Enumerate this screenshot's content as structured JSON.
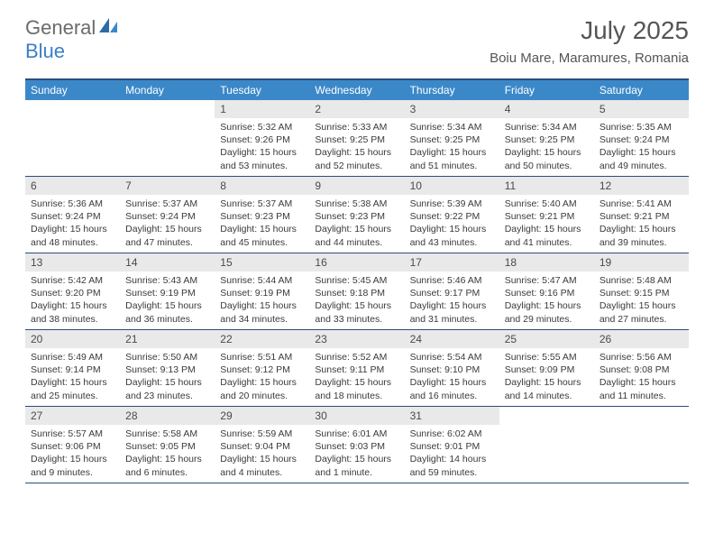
{
  "logo": {
    "part1": "General",
    "part2": "Blue"
  },
  "title": "July 2025",
  "location": "Boiu Mare, Maramures, Romania",
  "colors": {
    "header_bg": "#3b88c9",
    "header_border": "#2a4d7a",
    "daynum_bg": "#e9e9e9",
    "text_dark": "#3a3a3a",
    "title_gray": "#555555",
    "logo_gray": "#6b6b6b",
    "logo_blue": "#3b7fc4"
  },
  "day_headers": [
    "Sunday",
    "Monday",
    "Tuesday",
    "Wednesday",
    "Thursday",
    "Friday",
    "Saturday"
  ],
  "weeks": [
    [
      {
        "empty": true
      },
      {
        "empty": true
      },
      {
        "num": "1",
        "sunrise": "Sunrise: 5:32 AM",
        "sunset": "Sunset: 9:26 PM",
        "daylight": "Daylight: 15 hours and 53 minutes."
      },
      {
        "num": "2",
        "sunrise": "Sunrise: 5:33 AM",
        "sunset": "Sunset: 9:25 PM",
        "daylight": "Daylight: 15 hours and 52 minutes."
      },
      {
        "num": "3",
        "sunrise": "Sunrise: 5:34 AM",
        "sunset": "Sunset: 9:25 PM",
        "daylight": "Daylight: 15 hours and 51 minutes."
      },
      {
        "num": "4",
        "sunrise": "Sunrise: 5:34 AM",
        "sunset": "Sunset: 9:25 PM",
        "daylight": "Daylight: 15 hours and 50 minutes."
      },
      {
        "num": "5",
        "sunrise": "Sunrise: 5:35 AM",
        "sunset": "Sunset: 9:24 PM",
        "daylight": "Daylight: 15 hours and 49 minutes."
      }
    ],
    [
      {
        "num": "6",
        "sunrise": "Sunrise: 5:36 AM",
        "sunset": "Sunset: 9:24 PM",
        "daylight": "Daylight: 15 hours and 48 minutes."
      },
      {
        "num": "7",
        "sunrise": "Sunrise: 5:37 AM",
        "sunset": "Sunset: 9:24 PM",
        "daylight": "Daylight: 15 hours and 47 minutes."
      },
      {
        "num": "8",
        "sunrise": "Sunrise: 5:37 AM",
        "sunset": "Sunset: 9:23 PM",
        "daylight": "Daylight: 15 hours and 45 minutes."
      },
      {
        "num": "9",
        "sunrise": "Sunrise: 5:38 AM",
        "sunset": "Sunset: 9:23 PM",
        "daylight": "Daylight: 15 hours and 44 minutes."
      },
      {
        "num": "10",
        "sunrise": "Sunrise: 5:39 AM",
        "sunset": "Sunset: 9:22 PM",
        "daylight": "Daylight: 15 hours and 43 minutes."
      },
      {
        "num": "11",
        "sunrise": "Sunrise: 5:40 AM",
        "sunset": "Sunset: 9:21 PM",
        "daylight": "Daylight: 15 hours and 41 minutes."
      },
      {
        "num": "12",
        "sunrise": "Sunrise: 5:41 AM",
        "sunset": "Sunset: 9:21 PM",
        "daylight": "Daylight: 15 hours and 39 minutes."
      }
    ],
    [
      {
        "num": "13",
        "sunrise": "Sunrise: 5:42 AM",
        "sunset": "Sunset: 9:20 PM",
        "daylight": "Daylight: 15 hours and 38 minutes."
      },
      {
        "num": "14",
        "sunrise": "Sunrise: 5:43 AM",
        "sunset": "Sunset: 9:19 PM",
        "daylight": "Daylight: 15 hours and 36 minutes."
      },
      {
        "num": "15",
        "sunrise": "Sunrise: 5:44 AM",
        "sunset": "Sunset: 9:19 PM",
        "daylight": "Daylight: 15 hours and 34 minutes."
      },
      {
        "num": "16",
        "sunrise": "Sunrise: 5:45 AM",
        "sunset": "Sunset: 9:18 PM",
        "daylight": "Daylight: 15 hours and 33 minutes."
      },
      {
        "num": "17",
        "sunrise": "Sunrise: 5:46 AM",
        "sunset": "Sunset: 9:17 PM",
        "daylight": "Daylight: 15 hours and 31 minutes."
      },
      {
        "num": "18",
        "sunrise": "Sunrise: 5:47 AM",
        "sunset": "Sunset: 9:16 PM",
        "daylight": "Daylight: 15 hours and 29 minutes."
      },
      {
        "num": "19",
        "sunrise": "Sunrise: 5:48 AM",
        "sunset": "Sunset: 9:15 PM",
        "daylight": "Daylight: 15 hours and 27 minutes."
      }
    ],
    [
      {
        "num": "20",
        "sunrise": "Sunrise: 5:49 AM",
        "sunset": "Sunset: 9:14 PM",
        "daylight": "Daylight: 15 hours and 25 minutes."
      },
      {
        "num": "21",
        "sunrise": "Sunrise: 5:50 AM",
        "sunset": "Sunset: 9:13 PM",
        "daylight": "Daylight: 15 hours and 23 minutes."
      },
      {
        "num": "22",
        "sunrise": "Sunrise: 5:51 AM",
        "sunset": "Sunset: 9:12 PM",
        "daylight": "Daylight: 15 hours and 20 minutes."
      },
      {
        "num": "23",
        "sunrise": "Sunrise: 5:52 AM",
        "sunset": "Sunset: 9:11 PM",
        "daylight": "Daylight: 15 hours and 18 minutes."
      },
      {
        "num": "24",
        "sunrise": "Sunrise: 5:54 AM",
        "sunset": "Sunset: 9:10 PM",
        "daylight": "Daylight: 15 hours and 16 minutes."
      },
      {
        "num": "25",
        "sunrise": "Sunrise: 5:55 AM",
        "sunset": "Sunset: 9:09 PM",
        "daylight": "Daylight: 15 hours and 14 minutes."
      },
      {
        "num": "26",
        "sunrise": "Sunrise: 5:56 AM",
        "sunset": "Sunset: 9:08 PM",
        "daylight": "Daylight: 15 hours and 11 minutes."
      }
    ],
    [
      {
        "num": "27",
        "sunrise": "Sunrise: 5:57 AM",
        "sunset": "Sunset: 9:06 PM",
        "daylight": "Daylight: 15 hours and 9 minutes."
      },
      {
        "num": "28",
        "sunrise": "Sunrise: 5:58 AM",
        "sunset": "Sunset: 9:05 PM",
        "daylight": "Daylight: 15 hours and 6 minutes."
      },
      {
        "num": "29",
        "sunrise": "Sunrise: 5:59 AM",
        "sunset": "Sunset: 9:04 PM",
        "daylight": "Daylight: 15 hours and 4 minutes."
      },
      {
        "num": "30",
        "sunrise": "Sunrise: 6:01 AM",
        "sunset": "Sunset: 9:03 PM",
        "daylight": "Daylight: 15 hours and 1 minute."
      },
      {
        "num": "31",
        "sunrise": "Sunrise: 6:02 AM",
        "sunset": "Sunset: 9:01 PM",
        "daylight": "Daylight: 14 hours and 59 minutes."
      },
      {
        "empty": true
      },
      {
        "empty": true
      }
    ]
  ]
}
